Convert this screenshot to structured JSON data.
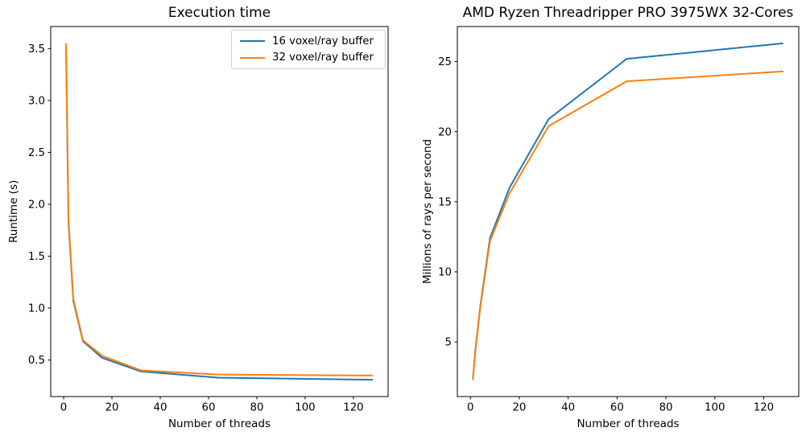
{
  "figure": {
    "background": "#ffffff",
    "text_color": "#000000"
  },
  "colors": {
    "series_blue": "#1f77b4",
    "series_orange": "#ff7f0e",
    "spine": "#000000",
    "legend_border": "#cccccc"
  },
  "chart_data": [
    {
      "type": "line",
      "title": "Execution time",
      "xlabel": "Number of threads",
      "ylabel": "Runtime (s)",
      "x": [
        1,
        2,
        4,
        8,
        16,
        32,
        64,
        128
      ],
      "series": [
        {
          "name": "16 voxel/ray buffer",
          "color": "#1f77b4",
          "values": [
            3.5,
            1.83,
            1.07,
            0.68,
            0.52,
            0.39,
            0.33,
            0.31
          ]
        },
        {
          "name": "32 voxel/ray buffer",
          "color": "#ff7f0e",
          "values": [
            3.55,
            1.86,
            1.09,
            0.69,
            0.54,
            0.4,
            0.36,
            0.35
          ]
        }
      ],
      "xlim": [
        -5.35,
        134.35
      ],
      "ylim": [
        0.148,
        3.712
      ],
      "x_tick_values": [
        0,
        20,
        40,
        60,
        80,
        100,
        120
      ],
      "x_tick_labels": [
        "0",
        "20",
        "40",
        "60",
        "80",
        "100",
        "120"
      ],
      "y_tick_values": [
        0.5,
        1.0,
        1.5,
        2.0,
        2.5,
        3.0,
        3.5
      ],
      "y_tick_labels": [
        "0.5",
        "1.0",
        "1.5",
        "2.0",
        "2.5",
        "3.0",
        "3.5"
      ],
      "grid": false,
      "legend": {
        "position": "upper right",
        "entries": [
          "16 voxel/ray buffer",
          "32 voxel/ray buffer"
        ]
      }
    },
    {
      "type": "line",
      "title": "AMD Ryzen Threadripper PRO 3975WX 32-Cores",
      "xlabel": "Number of threads",
      "ylabel": "Millions of rays per second",
      "x": [
        1,
        2,
        4,
        8,
        16,
        32,
        64,
        128
      ],
      "series": [
        {
          "name": "16 voxel/ray buffer",
          "color": "#1f77b4",
          "values": [
            2.3,
            4.4,
            7.5,
            12.4,
            16.0,
            20.9,
            25.2,
            26.3
          ]
        },
        {
          "name": "32 voxel/ray buffer",
          "color": "#ff7f0e",
          "values": [
            2.3,
            4.4,
            7.4,
            12.2,
            15.6,
            20.4,
            23.6,
            24.3
          ]
        }
      ],
      "xlim": [
        -5.35,
        134.35
      ],
      "ylim": [
        1.1,
        27.5
      ],
      "x_tick_values": [
        0,
        20,
        40,
        60,
        80,
        100,
        120
      ],
      "x_tick_labels": [
        "0",
        "20",
        "40",
        "60",
        "80",
        "100",
        "120"
      ],
      "y_tick_values": [
        5,
        10,
        15,
        20,
        25
      ],
      "y_tick_labels": [
        "5",
        "10",
        "15",
        "20",
        "25"
      ],
      "grid": false,
      "legend": null
    }
  ]
}
